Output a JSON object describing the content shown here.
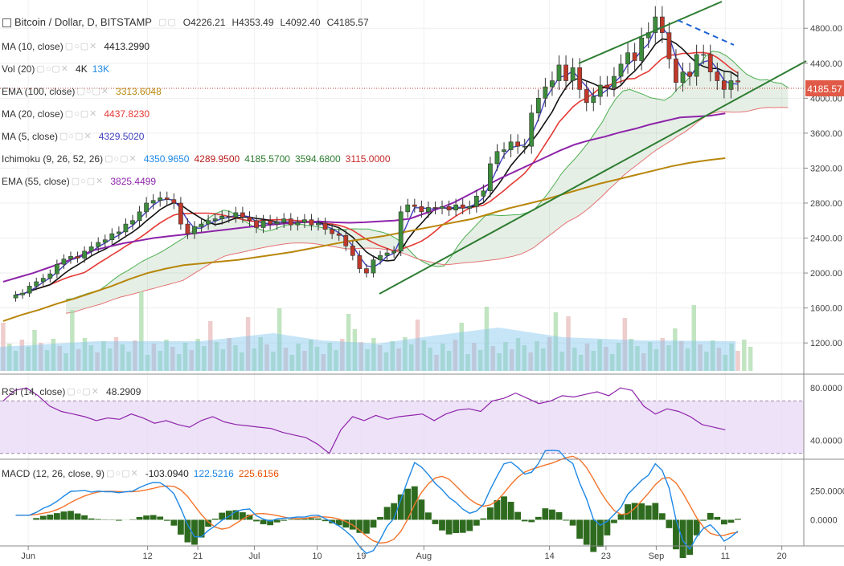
{
  "header": {
    "symbol": "Bitcoin / Dollar, D, BITSTAMP",
    "open": "O4226.21",
    "high": "H4353.49",
    "low": "L4092.40",
    "close": "C4185.57"
  },
  "legend": [
    {
      "label": "MA (10, close)",
      "values": [
        {
          "text": "4413.2990",
          "color": "#222222"
        }
      ]
    },
    {
      "label": "Vol (20)",
      "values": [
        {
          "text": "4K",
          "color": "#222222"
        },
        {
          "text": "13K",
          "color": "#1e88e5"
        }
      ]
    },
    {
      "label": "EMA (100, close)",
      "values": [
        {
          "text": "3313.6048",
          "color": "#b8860b"
        }
      ]
    },
    {
      "label": "MA (20, close)",
      "values": [
        {
          "text": "4437.8230",
          "color": "#e53935"
        }
      ]
    },
    {
      "label": "MA (5, close)",
      "values": [
        {
          "text": "4329.5020",
          "color": "#3f3fbf"
        }
      ]
    },
    {
      "label": "Ichimoku (9, 26, 52, 26)",
      "values": [
        {
          "text": "4350.9650",
          "color": "#1e88e5"
        },
        {
          "text": "4289.9500",
          "color": "#b71c1c"
        },
        {
          "text": "4185.5700",
          "color": "#2e7d32"
        },
        {
          "text": "3594.6800",
          "color": "#2e7d32"
        },
        {
          "text": "3115.0000",
          "color": "#c62828"
        }
      ]
    },
    {
      "label": "EMA (55, close)",
      "values": [
        {
          "text": "3825.4499",
          "color": "#8e24aa"
        }
      ]
    }
  ],
  "rsi_legend": {
    "label": "RSI (14, close)",
    "value": "48.2909"
  },
  "macd_legend": {
    "label": "MACD (12, 26, close, 9)",
    "values": [
      {
        "text": "-103.0940",
        "color": "#222222"
      },
      {
        "text": "122.5216",
        "color": "#1e88e5"
      },
      {
        "text": "225.6156",
        "color": "#e65100"
      }
    ]
  },
  "price_badge": "4185.57",
  "colors": {
    "up": "#3c8c3c",
    "down": "#c0392b",
    "ma10": "#111111",
    "ma5": "#3f3fbf",
    "ma20": "#e53935",
    "ema55": "#8e24aa",
    "ema100": "#b8860b",
    "cloud": "#2e7d32",
    "volume": "#81c6ee",
    "rsi": "#8e24aa",
    "macd": "#1e88e5",
    "signal": "#f4742b",
    "hist": "#2e6b1f"
  },
  "chart_data": {
    "type": "candlestick",
    "y_ticks": [
      "4800.00",
      "4400.00",
      "4000.00",
      "3600.00",
      "3200.00",
      "2800.00",
      "2400.00",
      "2000.00",
      "1600.00",
      "1200.00"
    ],
    "y_tick_values": [
      4800,
      4400,
      4000,
      3600,
      3200,
      2800,
      2400,
      2000,
      1600,
      1200
    ],
    "ylim": [
      880,
      5050
    ],
    "x_ticks": [
      "Jun",
      "12",
      "21",
      "Jul",
      "10",
      "19",
      "Aug",
      "14",
      "23",
      "Sep",
      "11",
      "20"
    ],
    "x_tick_index": [
      4,
      23,
      31,
      40,
      50,
      57,
      67,
      87,
      96,
      104,
      115,
      124
    ],
    "num_bars": 128,
    "closes": [
      1750,
      1770,
      1850,
      1900,
      1940,
      1990,
      2100,
      2160,
      2190,
      2170,
      2250,
      2300,
      2350,
      2380,
      2450,
      2470,
      2560,
      2600,
      2700,
      2800,
      2830,
      2860,
      2840,
      2800,
      2560,
      2450,
      2530,
      2560,
      2600,
      2620,
      2650,
      2640,
      2690,
      2640,
      2600,
      2520,
      2600,
      2560,
      2580,
      2620,
      2550,
      2580,
      2610,
      2550,
      2570,
      2500,
      2450,
      2430,
      2310,
      2200,
      2050,
      2000,
      2150,
      2200,
      2230,
      2250,
      2700,
      2780,
      2760,
      2700,
      2750,
      2740,
      2760,
      2720,
      2780,
      2740,
      2760,
      2880,
      2940,
      3250,
      3390,
      3410,
      3500,
      3450,
      3450,
      3830,
      4000,
      4130,
      4200,
      4380,
      4200,
      4350,
      4100,
      3950,
      4020,
      4150,
      4120,
      4250,
      4390,
      4520,
      4430,
      4690,
      4750,
      4930,
      4750,
      4450,
      4180,
      4300,
      4250,
      4500,
      4500,
      4300,
      4200,
      4100,
      4200,
      4185
    ],
    "ema55": [
      1900,
      1950,
      2000,
      2060,
      2120,
      2190,
      2260,
      2300,
      2340,
      2370,
      2400,
      2420,
      2440,
      2460,
      2480,
      2500,
      2520,
      2540,
      2555,
      2570,
      2580,
      2590,
      2580,
      2575,
      2580,
      2590,
      2600,
      2620,
      2680,
      2740,
      2810,
      2900,
      2990,
      3080,
      3160,
      3240,
      3320,
      3400,
      3470,
      3520,
      3560,
      3610,
      3650,
      3700,
      3740,
      3780,
      3790,
      3800,
      3826
    ],
    "ema100": [
      1450,
      1520,
      1580,
      1650,
      1710,
      1780,
      1850,
      1930,
      2000,
      2050,
      2090,
      2110,
      2130,
      2150,
      2180,
      2210,
      2240,
      2280,
      2320,
      2360,
      2390,
      2420,
      2460,
      2500,
      2540,
      2580,
      2620,
      2680,
      2740,
      2790,
      2840,
      2900,
      2960,
      3020,
      3070,
      3120,
      3170,
      3220,
      3260,
      3290,
      3314
    ],
    "rsi": {
      "ylim": [
        28,
        88
      ],
      "ticks": [
        "80.0000",
        "40.0000"
      ],
      "upper": 70,
      "lower": 30,
      "values": [
        70,
        78,
        80,
        74,
        66,
        62,
        60,
        58,
        55,
        57,
        56,
        60,
        57,
        53,
        55,
        52,
        50,
        55,
        58,
        54,
        52,
        51,
        50,
        49,
        46,
        44,
        42,
        37,
        30,
        48,
        58,
        55,
        59,
        56,
        58,
        59,
        60,
        55,
        60,
        63,
        64,
        62,
        70,
        72,
        76,
        72,
        68,
        70,
        74,
        73,
        75,
        77,
        74,
        80,
        78,
        66,
        60,
        64,
        62,
        58,
        52,
        50,
        48
      ]
    },
    "macd": {
      "ylim": [
        -200,
        500
      ],
      "ticks": [
        "250.0000",
        "0.0000"
      ]
    }
  }
}
